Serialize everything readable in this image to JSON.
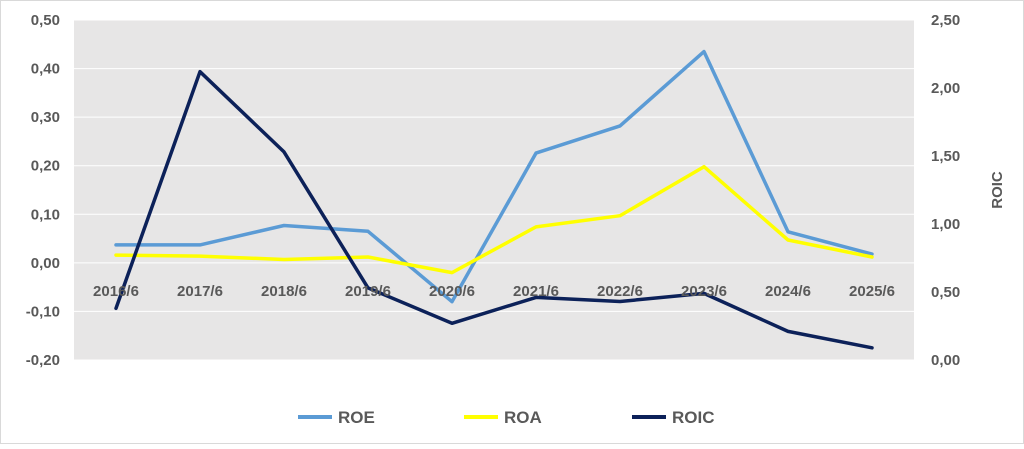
{
  "chart_data": {
    "type": "line",
    "categories": [
      "2016/6",
      "2017/6",
      "2018/6",
      "2019/6",
      "2020/6",
      "2021/6",
      "2022/6",
      "2023/6",
      "2024/6",
      "2025/6"
    ],
    "y_left": {
      "ylim": [
        -0.2,
        0.5
      ],
      "ticks": [
        0.5,
        0.4,
        0.3,
        0.2,
        0.1,
        0.0,
        -0.1,
        -0.2
      ],
      "tick_labels": [
        "0,50",
        "0,40",
        "0,30",
        "0,20",
        "0,10",
        "0,00",
        "-0,10",
        "-0,20"
      ]
    },
    "y_right": {
      "label": "ROIC",
      "ylim": [
        0.0,
        2.5
      ],
      "ticks": [
        2.5,
        2.0,
        1.5,
        1.0,
        0.5,
        0.0
      ],
      "tick_labels": [
        "2,50",
        "2,00",
        "1,50",
        "1,00",
        "0,50",
        "0,00"
      ]
    },
    "series": [
      {
        "name": "ROE",
        "axis": "left",
        "color": "#5B9BD5",
        "values": [
          0.037,
          0.037,
          0.077,
          0.065,
          -0.08,
          0.226,
          0.282,
          0.435,
          0.064,
          0.018
        ]
      },
      {
        "name": "ROA",
        "axis": "left",
        "color": "#FFFF00",
        "values": [
          0.016,
          0.014,
          0.007,
          0.012,
          -0.02,
          0.074,
          0.097,
          0.198,
          0.047,
          0.012
        ]
      },
      {
        "name": "ROIC",
        "axis": "right",
        "color": "#0C2159",
        "values": [
          0.38,
          2.12,
          1.53,
          0.53,
          0.27,
          0.46,
          0.43,
          0.49,
          0.21,
          0.09
        ]
      }
    ],
    "grid": true,
    "legend_position": "bottom",
    "plot_background": "#E7E6E6"
  }
}
